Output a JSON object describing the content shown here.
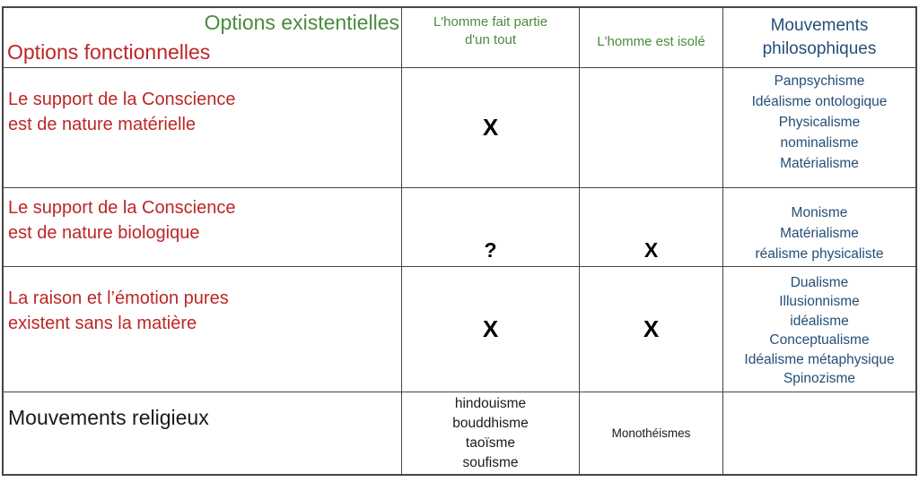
{
  "colors": {
    "existential_green": "#4a8b3c",
    "functional_red": "#bd2626",
    "philosophy_blue": "#254e77",
    "mark_black": "#000000",
    "border_gray": "#454545"
  },
  "table": {
    "corner": {
      "existential_label": "Options existentielles",
      "functional_label": "Options fonctionnelles"
    },
    "column_headers": {
      "part_of_whole": [
        "L'homme fait partie",
        "d'un tout"
      ],
      "isolated": "L'homme est isolé",
      "philosophical": [
        "Mouvements",
        "philosophiques"
      ]
    },
    "rows": [
      {
        "label": [
          "Le support de la Conscience",
          "est de nature matérielle"
        ],
        "part_of_whole_mark": "X",
        "isolated_mark": "",
        "philosophies": [
          "Panpsychisme",
          "Idéalisme ontologique",
          "Physicalisme",
          "nominalisme",
          "Matérialisme"
        ]
      },
      {
        "label": [
          "Le support de la Conscience",
          "est de nature biologique"
        ],
        "part_of_whole_mark": "?",
        "isolated_mark": "X",
        "philosophies": [
          "Monisme",
          "Matérialisme",
          "réalisme physicaliste"
        ]
      },
      {
        "label": [
          "La raison et l’émotion pures",
          "existent sans la matière"
        ],
        "part_of_whole_mark": "X",
        "isolated_mark": "X",
        "philosophies": [
          "Dualisme",
          "Illusionnisme",
          "idéalisme",
          "Conceptualisme",
          "Idéalisme métaphysique",
          "Spinozisme"
        ]
      }
    ],
    "religious_row": {
      "label": "Mouvements religieux",
      "part_of_whole": [
        "hindouisme",
        "bouddhisme",
        "taoïsme",
        "soufisme"
      ],
      "isolated": "Monothéismes",
      "philosophies": ""
    }
  }
}
